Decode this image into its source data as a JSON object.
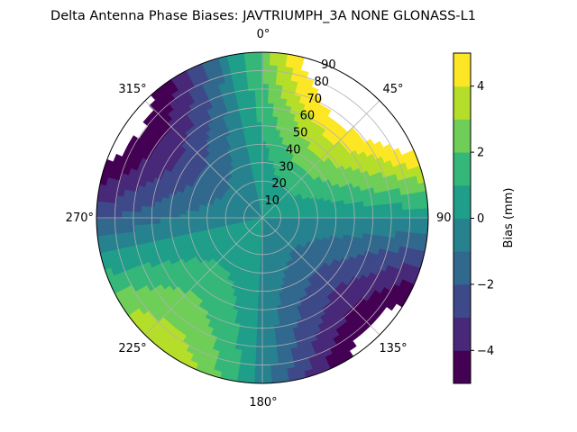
{
  "chart_data": {
    "type": "heatmap",
    "projection": "polar",
    "title": "Delta Antenna Phase Biases: JAVTRIUMPH_3A   NONE GLONASS-L1",
    "azimuth_labels": [
      "0°",
      "45°",
      "90",
      "135°",
      "180°",
      "225°",
      "270°",
      "315°"
    ],
    "zenith_labels": [
      "10",
      "20",
      "30",
      "40",
      "50",
      "60",
      "70",
      "80",
      "90"
    ],
    "colorbar": {
      "label": "Bias (mm)",
      "ticks": [
        "4",
        "2",
        "0",
        "−2",
        "−4"
      ],
      "range": [
        -5,
        5
      ],
      "colors": [
        "#440154",
        "#482878",
        "#3e4989",
        "#31688e",
        "#26828e",
        "#1f9e89",
        "#35b779",
        "#6ece58",
        "#b5de2b",
        "#fde725"
      ]
    },
    "lobes": [
      {
        "azimuth_center": 40,
        "sign": "positive",
        "description": "high bias lobe"
      },
      {
        "azimuth_center": 205,
        "sign": "positive",
        "description": "high bias lobe"
      },
      {
        "azimuth_center": 125,
        "sign": "negative",
        "description": "low bias lobe"
      },
      {
        "azimuth_center": 300,
        "sign": "negative",
        "description": "low bias lobe"
      }
    ],
    "grid": true,
    "no_data_color": "#ffffff"
  }
}
